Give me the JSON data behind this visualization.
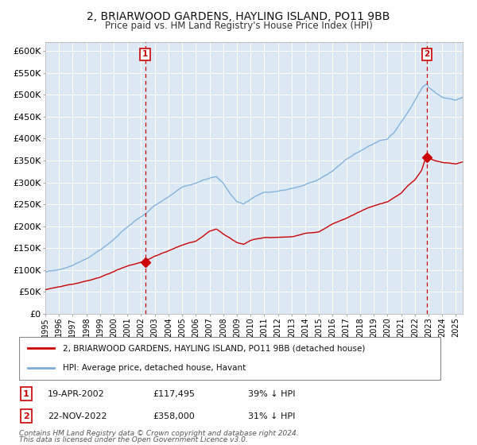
{
  "title": "2, BRIARWOOD GARDENS, HAYLING ISLAND, PO11 9BB",
  "subtitle": "Price paid vs. HM Land Registry's House Price Index (HPI)",
  "title_fontsize": 10,
  "subtitle_fontsize": 9,
  "ylim": [
    0,
    620000
  ],
  "yticks": [
    0,
    50000,
    100000,
    150000,
    200000,
    250000,
    300000,
    350000,
    400000,
    450000,
    500000,
    550000,
    600000
  ],
  "bg_color": "#dce9f5",
  "grid_color": "#c8d8e8",
  "hpi_color": "#7aaddb",
  "price_color": "#cc0000",
  "vline_color": "#cc0000",
  "sale1_date_num": 2002.3,
  "sale1_price": 117495,
  "sale1_label": "1",
  "sale1_date_str": "19-APR-2002",
  "sale1_pct": "39% ↓ HPI",
  "sale2_date_num": 2022.895,
  "sale2_price": 358000,
  "sale2_label": "2",
  "sale2_date_str": "22-NOV-2022",
  "sale2_pct": "31% ↓ HPI",
  "legend_line1": "2, BRIARWOOD GARDENS, HAYLING ISLAND, PO11 9BB (detached house)",
  "legend_line2": "HPI: Average price, detached house, Havant",
  "footer1": "Contains HM Land Registry data © Crown copyright and database right 2024.",
  "footer2": "This data is licensed under the Open Government Licence v3.0.",
  "xmin": 1995,
  "xmax": 2025.5
}
